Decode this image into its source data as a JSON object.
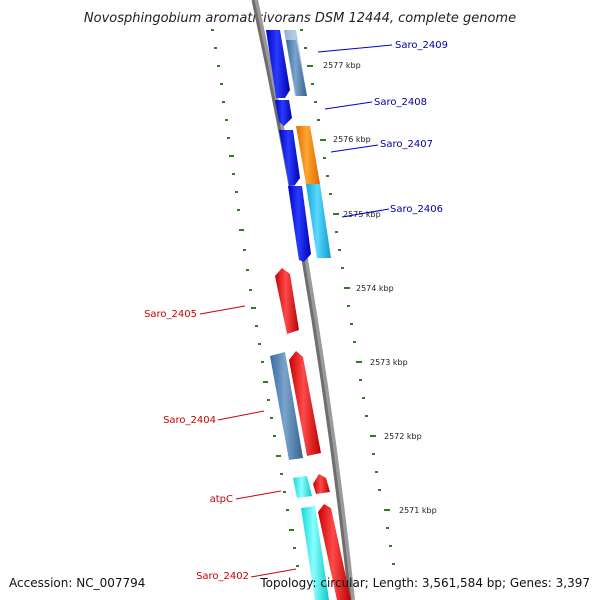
{
  "title": "Novosphingobium aromaticivorans DSM 12444, complete genome",
  "footer": {
    "accession": "Accession: NC_007794",
    "topology": "Topology: circular; Length: 3,561,584 bp; Genes: 3,397"
  },
  "positions": [
    "2577 kbp",
    "2576 kbp",
    "2575 kbp",
    "2574 kbp",
    "2573 kbp",
    "2572 kbp",
    "2571 kbp"
  ],
  "genes": [
    {
      "label": "Saro_2409",
      "strand": "top"
    },
    {
      "label": "Saro_2408",
      "strand": "top"
    },
    {
      "label": "Saro_2407",
      "strand": "top"
    },
    {
      "label": "Saro_2406",
      "strand": "top"
    },
    {
      "label": "Saro_2405",
      "strand": "bottom"
    },
    {
      "label": "Saro_2404",
      "strand": "bottom"
    },
    {
      "label": "atpC",
      "strand": "bottom"
    },
    {
      "label": "Saro_2402",
      "strand": "bottom"
    }
  ],
  "colors": {
    "blue": "#1010e8",
    "steel": "#4f7fb0",
    "orange": "#ff8c00",
    "sky": "#22c6f0",
    "red": "#ee1111",
    "cyan": "#22f0f0",
    "tick": "#2e7d1e",
    "label_top": "#0000aa",
    "label_bottom": "#cc0000"
  }
}
